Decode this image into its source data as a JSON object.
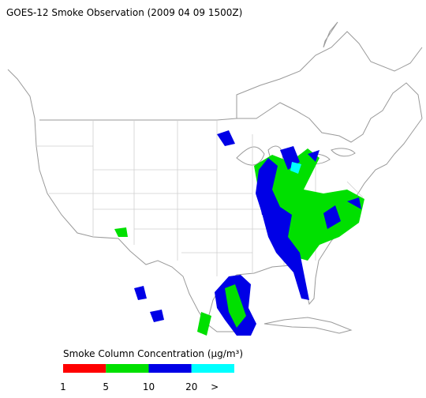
{
  "title": "GOES-12 Smoke Observation (2009 04 09  1500Z)",
  "legend": {
    "title": "Smoke Column Concentration (μg/m³)",
    "colors": [
      "#ff0000",
      "#00e000",
      "#0000e6",
      "#00ffff"
    ],
    "labels": [
      "1",
      "5",
      "10",
      "20",
      ">"
    ]
  }
}
